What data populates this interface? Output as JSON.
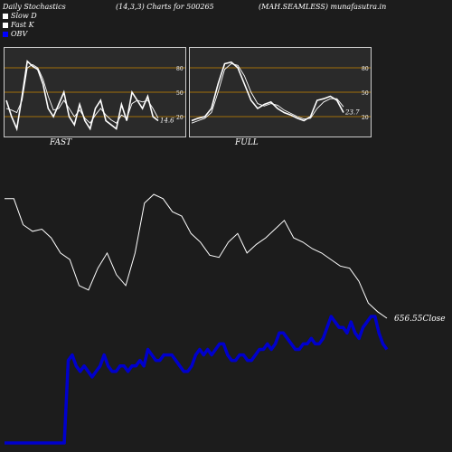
{
  "header": {
    "left": "Daily Stochastics",
    "center": "(14,3,3) Charts for 500265",
    "right": "(MAH.SEAMLESS) munafasutra.in"
  },
  "legend": [
    {
      "label": "Slow  D",
      "color": "#ffffff"
    },
    {
      "label": "Fast K",
      "color": "#ffffff"
    },
    {
      "label": "OBV",
      "color": "#0000ff"
    }
  ],
  "colors": {
    "background": "#1c1c1c",
    "panel": "#2a2a2a",
    "levels": "#cc8800",
    "obv": "#0000cc",
    "price": "#ffffff"
  },
  "chart_data": [
    {
      "type": "line",
      "panel_label": "FAST",
      "ylim": [
        0,
        100
      ],
      "levels": [
        20,
        50,
        80
      ],
      "level_labels": [
        "20",
        "50",
        "80"
      ],
      "last_value_label": "14.6",
      "series": [
        {
          "values": [
            40,
            20,
            5,
            45,
            88,
            82,
            78,
            60,
            30,
            20,
            35,
            50,
            20,
            10,
            35,
            15,
            5,
            30,
            40,
            15,
            10,
            5,
            35,
            15,
            50,
            40,
            30,
            45,
            20,
            15
          ]
        },
        {
          "values": [
            30,
            28,
            25,
            40,
            80,
            84,
            80,
            66,
            45,
            28,
            30,
            40,
            30,
            20,
            28,
            18,
            12,
            22,
            30,
            22,
            16,
            12,
            22,
            18,
            36,
            40,
            38,
            40,
            30,
            18
          ]
        }
      ]
    },
    {
      "type": "line",
      "panel_label": "FULL",
      "ylim": [
        0,
        100
      ],
      "levels": [
        20,
        50,
        80
      ],
      "level_labels": [
        "20",
        "50",
        "80"
      ],
      "last_value_label": "23.7",
      "series": [
        {
          "values": [
            15,
            18,
            20,
            30,
            60,
            85,
            87,
            80,
            60,
            40,
            30,
            35,
            38,
            30,
            25,
            22,
            18,
            15,
            20,
            40,
            42,
            45,
            40,
            25
          ]
        },
        {
          "values": [
            12,
            15,
            18,
            25,
            50,
            78,
            85,
            83,
            70,
            50,
            36,
            33,
            36,
            34,
            28,
            24,
            20,
            17,
            18,
            30,
            38,
            42,
            42,
            32
          ]
        }
      ]
    },
    {
      "type": "line",
      "close_label": "656.55Close",
      "series": [
        {
          "name": "Close",
          "values": [
            80,
            80,
            68,
            65,
            66,
            62,
            55,
            52,
            40,
            38,
            48,
            55,
            45,
            40,
            55,
            78,
            82,
            80,
            74,
            72,
            64,
            60,
            54,
            53,
            60,
            64,
            55,
            59,
            62,
            66,
            70,
            62,
            60,
            57,
            55,
            52,
            49,
            48,
            42,
            32,
            28,
            25
          ]
        },
        {
          "name": "OBV",
          "values": [
            -20,
            -20,
            -20,
            -20,
            -20,
            -20,
            -20,
            -20,
            -20,
            -20,
            -20,
            -20,
            -20,
            -20,
            -20,
            -20,
            10,
            12,
            8,
            6,
            8,
            6,
            4,
            6,
            8,
            12,
            8,
            6,
            6,
            8,
            8,
            6,
            8,
            8,
            10,
            8,
            14,
            12,
            10,
            10,
            12,
            12,
            12,
            10,
            8,
            6,
            6,
            8,
            12,
            14,
            12,
            14,
            12,
            14,
            16,
            16,
            12,
            10,
            10,
            12,
            12,
            10,
            10,
            12,
            14,
            14,
            16,
            14,
            16,
            20,
            20,
            18,
            16,
            14,
            14,
            16,
            16,
            18,
            16,
            16,
            18,
            22,
            26,
            24,
            22,
            22,
            20,
            24,
            20,
            18,
            22,
            24,
            26,
            26,
            20,
            16,
            14
          ]
        }
      ]
    }
  ]
}
